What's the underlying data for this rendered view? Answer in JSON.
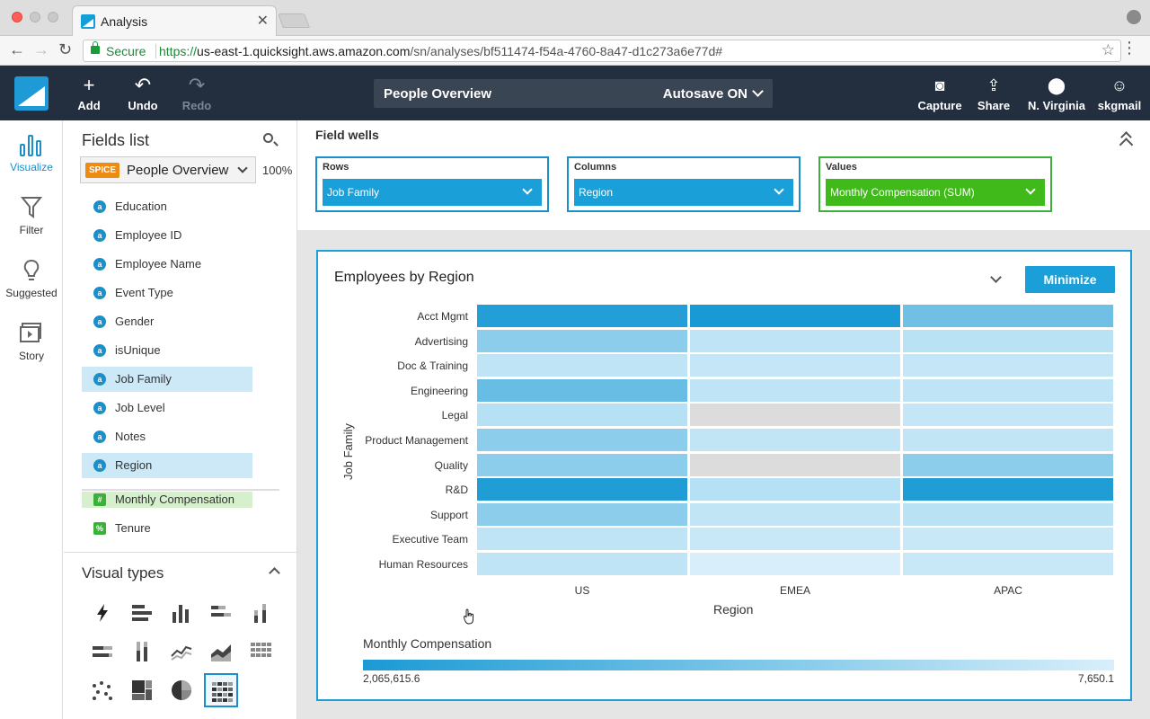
{
  "browser": {
    "tab_title": "Analysis",
    "url": {
      "scheme": "https://",
      "host": "us-east-1.quicksight.aws.amazon.com",
      "path": "/sn/analyses/bf511474-f54a-4760-8a47-d1c273a6e77d#"
    },
    "secure_label": "Secure"
  },
  "toolbar": {
    "add": "Add",
    "undo": "Undo",
    "redo": "Redo",
    "analysis_name": "People Overview",
    "autosave": "Autosave ON",
    "capture": "Capture",
    "share": "Share",
    "region": "N. Virginia",
    "user": "skgmail"
  },
  "leftnav": {
    "visualize": "Visualize",
    "filter": "Filter",
    "suggested": "Suggested",
    "story": "Story"
  },
  "fields": {
    "title": "Fields list",
    "spice_badge": "SPICE",
    "dataset": "People Overview",
    "spice_pct": "100%",
    "items": [
      {
        "label": "Education",
        "type": "a",
        "state": "normal"
      },
      {
        "label": "Employee ID",
        "type": "a",
        "state": "normal"
      },
      {
        "label": "Employee Name",
        "type": "a",
        "state": "normal"
      },
      {
        "label": "Event Type",
        "type": "a",
        "state": "normal"
      },
      {
        "label": "Gender",
        "type": "a",
        "state": "normal"
      },
      {
        "label": "isUnique",
        "type": "a",
        "state": "normal"
      },
      {
        "label": "Job Family",
        "type": "a",
        "state": "selected"
      },
      {
        "label": "Job Level",
        "type": "a",
        "state": "normal"
      },
      {
        "label": "Notes",
        "type": "a",
        "state": "normal"
      },
      {
        "label": "Region",
        "type": "a",
        "state": "selected"
      },
      {
        "label": "Monthly Compensation",
        "type": "#",
        "state": "measure"
      },
      {
        "label": "Tenure",
        "type": "%",
        "state": "normal"
      }
    ]
  },
  "visual_types": {
    "title": "Visual types"
  },
  "field_wells": {
    "title": "Field wells",
    "rows_label": "Rows",
    "rows_value": "Job Family",
    "columns_label": "Columns",
    "columns_value": "Region",
    "values_label": "Values",
    "values_value": "Monthly Compensation (SUM)"
  },
  "visual": {
    "title": "Employees by Region",
    "minimize": "Minimize"
  },
  "chart_data": {
    "type": "heatmap",
    "title": "Employees by Region",
    "xlabel": "Region",
    "ylabel": "Job Family",
    "columns": [
      "US",
      "EMEA",
      "APAC"
    ],
    "rows": [
      "Acct Mgmt",
      "Advertising",
      "Doc & Training",
      "Engineering",
      "Legal",
      "Product Management",
      "Quality",
      "R&D",
      "Support",
      "Executive Team",
      "Human Resources"
    ],
    "values": [
      [
        1900000,
        2065615.6,
        700000
      ],
      [
        400000,
        60000,
        80000
      ],
      [
        60000,
        40000,
        40000
      ],
      [
        800000,
        60000,
        60000
      ],
      [
        100000,
        null,
        40000
      ],
      [
        400000,
        50000,
        50000
      ],
      [
        400000,
        null,
        400000
      ],
      [
        1950000,
        100000,
        1950000
      ],
      [
        400000,
        50000,
        80000
      ],
      [
        60000,
        30000,
        30000
      ],
      [
        60000,
        7650.1,
        30000
      ]
    ],
    "color_min": "#d8effb",
    "color_max": "#1a9ad4",
    "null_color": "#dcdcdc",
    "legend": {
      "title": "Monthly Compensation",
      "max_label": "2,065,615.6",
      "min_label": "7,650.1",
      "max": 2065615.6,
      "min": 7650.1
    }
  }
}
